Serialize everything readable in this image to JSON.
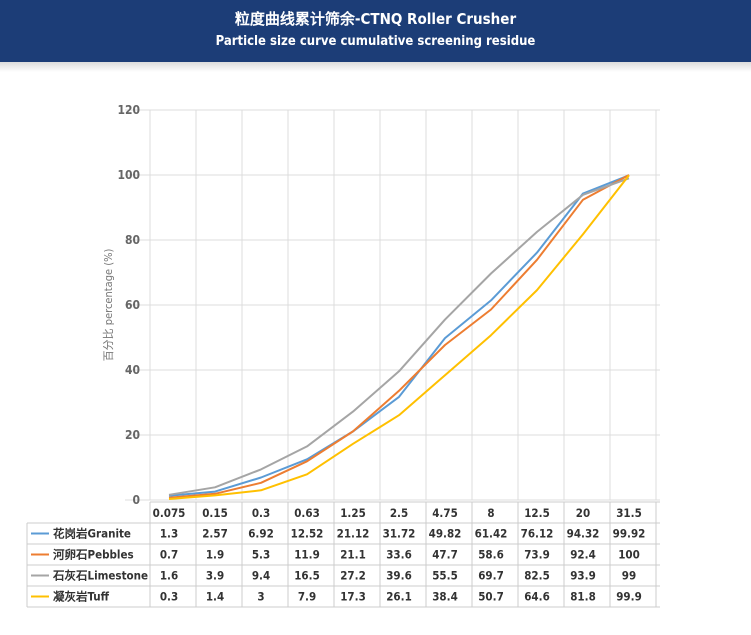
{
  "header": {
    "title_cn": "粒度曲线累计筛余-CTNQ Roller Crusher",
    "title_en": "Particle size curve cumulative screening residue"
  },
  "chart_data": {
    "type": "line",
    "title": "粒度曲线累计筛余-CTNQ Roller Crusher",
    "subtitle": "Particle size curve cumulative screening residue",
    "xlabel": "",
    "ylabel": "百分比 percentage (%)",
    "categories": [
      "0.075",
      "0.15",
      "0.3",
      "0.63",
      "1.25",
      "2.5",
      "4.75",
      "8",
      "12.5",
      "20",
      "31.5"
    ],
    "ylim": [
      0,
      120
    ],
    "yticks": [
      "0",
      "20",
      "40",
      "60",
      "80",
      "100",
      "120"
    ],
    "grid": true,
    "legend": "table-bottom",
    "series": [
      {
        "name": "花岗岩Granite",
        "color": "#5b9bd5",
        "values": [
          1.3,
          2.57,
          6.92,
          12.52,
          21.12,
          31.72,
          49.82,
          61.42,
          76.12,
          94.32,
          99.92
        ],
        "labels": [
          "1.3",
          "2.57",
          "6.92",
          "12.52",
          "21.12",
          "31.72",
          "49.82",
          "61.42",
          "76.12",
          "94.32",
          "99.92"
        ]
      },
      {
        "name": "河卵石Pebbles",
        "color": "#ed7d31",
        "values": [
          0.7,
          1.9,
          5.3,
          11.9,
          21.1,
          33.6,
          47.7,
          58.6,
          73.9,
          92.4,
          100
        ],
        "labels": [
          "0.7",
          "1.9",
          "5.3",
          "11.9",
          "21.1",
          "33.6",
          "47.7",
          "58.6",
          "73.9",
          "92.4",
          "100"
        ]
      },
      {
        "name": "石灰石Limestone",
        "color": "#a5a5a5",
        "values": [
          1.6,
          3.9,
          9.4,
          16.5,
          27.2,
          39.6,
          55.5,
          69.7,
          82.5,
          93.9,
          99
        ],
        "labels": [
          "1.6",
          "3.9",
          "9.4",
          "16.5",
          "27.2",
          "39.6",
          "55.5",
          "69.7",
          "82.5",
          "93.9",
          "99"
        ]
      },
      {
        "name": "凝灰岩Tuff",
        "color": "#ffc000",
        "values": [
          0.3,
          1.4,
          3,
          7.9,
          17.3,
          26.1,
          38.4,
          50.7,
          64.6,
          81.8,
          99.9
        ],
        "labels": [
          "0.3",
          "1.4",
          "3",
          "7.9",
          "17.3",
          "26.1",
          "38.4",
          "50.7",
          "64.6",
          "81.8",
          "99.9"
        ]
      }
    ]
  }
}
